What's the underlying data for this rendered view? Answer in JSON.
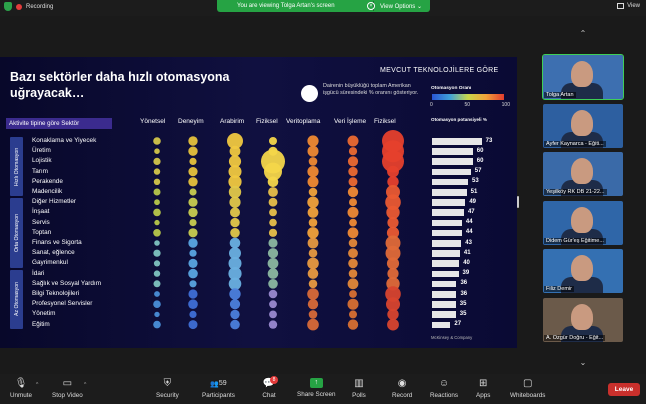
{
  "topbar": {
    "recording": "Recording",
    "banner": "You are viewing Tolga Artan's screen",
    "view_options": "View Options",
    "view": "View"
  },
  "slide": {
    "title": "Bazı sektörler daha hızlı otomasyona uğrayacak…",
    "headline": "MEVCUT TEKNOLOJİLERE GÖRE",
    "bubble_note": "Dairenin büyüklüğü toplam Amerikan işgücü süresindeki % oranını gösteriyor.",
    "tag": "Aktivite tipine göre Sektör",
    "columns": [
      "Yönetsel",
      "Deneyim",
      "Arabirim",
      "Fiziksel",
      "Veritoplama",
      "Veri İşleme",
      "Fiziksel"
    ],
    "groups": [
      "Hızlı Otomasyon",
      "Orta Otomasyon",
      "Az Otomasyon"
    ],
    "sectors": [
      "Konaklama ve Yiyecek",
      "Üretim",
      "Lojistik",
      "Tarım",
      "Perakende",
      "Madencilik",
      "Diğer Hizmetler",
      "İnşaat",
      "Servis",
      "Toptan",
      "Finans ve Sigorta",
      "Sanat, eğlence",
      "Gayrimenkul",
      "İdari",
      "Sağlık ve Sosyal Yardım",
      "Bilgi Teknolojileri",
      "Profesyonel Servisler",
      "Yönetim",
      "Eğitim"
    ],
    "potential_values": [
      73,
      60,
      60,
      57,
      53,
      51,
      49,
      47,
      44,
      44,
      43,
      41,
      40,
      39,
      36,
      36,
      35,
      35,
      27
    ],
    "legend_title": "Otomasyon Oranı",
    "legend_ticks": [
      "0",
      "50",
      "100"
    ],
    "potential_title": "Otomasyon potansiyeli %",
    "source": "McKinsey & Company"
  },
  "participants": [
    {
      "name": "Tolga Artan",
      "active": true
    },
    {
      "name": "Ayfer Kaynarca - Eğiti..."
    },
    {
      "name": "Yeşilköy RK DB 21-22..."
    },
    {
      "name": "Didem Gür'eş Eğitime..."
    },
    {
      "name": "Filiz Demir"
    },
    {
      "name": "A. Özgür Doğru - Eğit..."
    }
  ],
  "toolbar": {
    "unmute": "Unmute",
    "stop_video": "Stop Video",
    "security": "Security",
    "participants": "Participants",
    "participants_count": "59",
    "chat": "Chat",
    "chat_badge": "8",
    "share_screen": "Share Screen",
    "polls": "Polls",
    "record": "Record",
    "reactions": "Reactions",
    "apps": "Apps",
    "whiteboards": "Whiteboards",
    "leave": "Leave"
  },
  "colors": {
    "slide_bg": "#0c0c38",
    "tag_bg": "#3b2b8e",
    "active_outline": "#3fcf57",
    "leave_bg": "#c9302c",
    "share_bg": "#26a344"
  }
}
